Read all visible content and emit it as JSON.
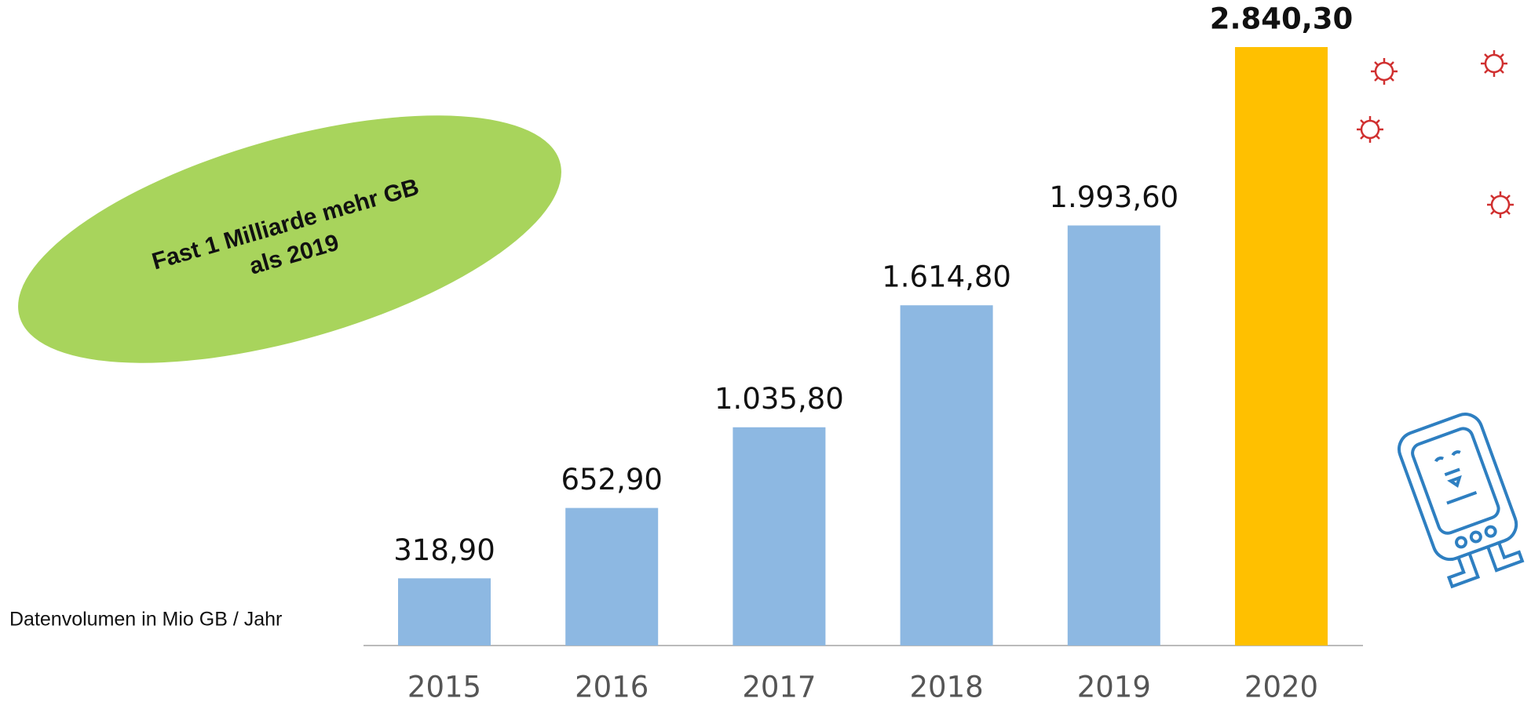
{
  "chart_data": {
    "type": "bar",
    "y_label": "Datenvolumen in Mio GB / Jahr",
    "annotation": [
      "Fast 1 Milliarde mehr GB",
      "als 2019"
    ],
    "categories": [
      "2015",
      "2016",
      "2017",
      "2018",
      "2019",
      "2020"
    ],
    "values": [
      318.9,
      652.9,
      1035.8,
      1614.8,
      1993.6,
      2840.3
    ],
    "value_labels": [
      "318,90",
      "652,90",
      "1.035,80",
      "1.614,80",
      "1.993,60",
      "2.840,30"
    ],
    "colors": [
      "#8db8e2",
      "#8db8e2",
      "#8db8e2",
      "#8db8e2",
      "#8db8e2",
      "#ffc000"
    ]
  }
}
